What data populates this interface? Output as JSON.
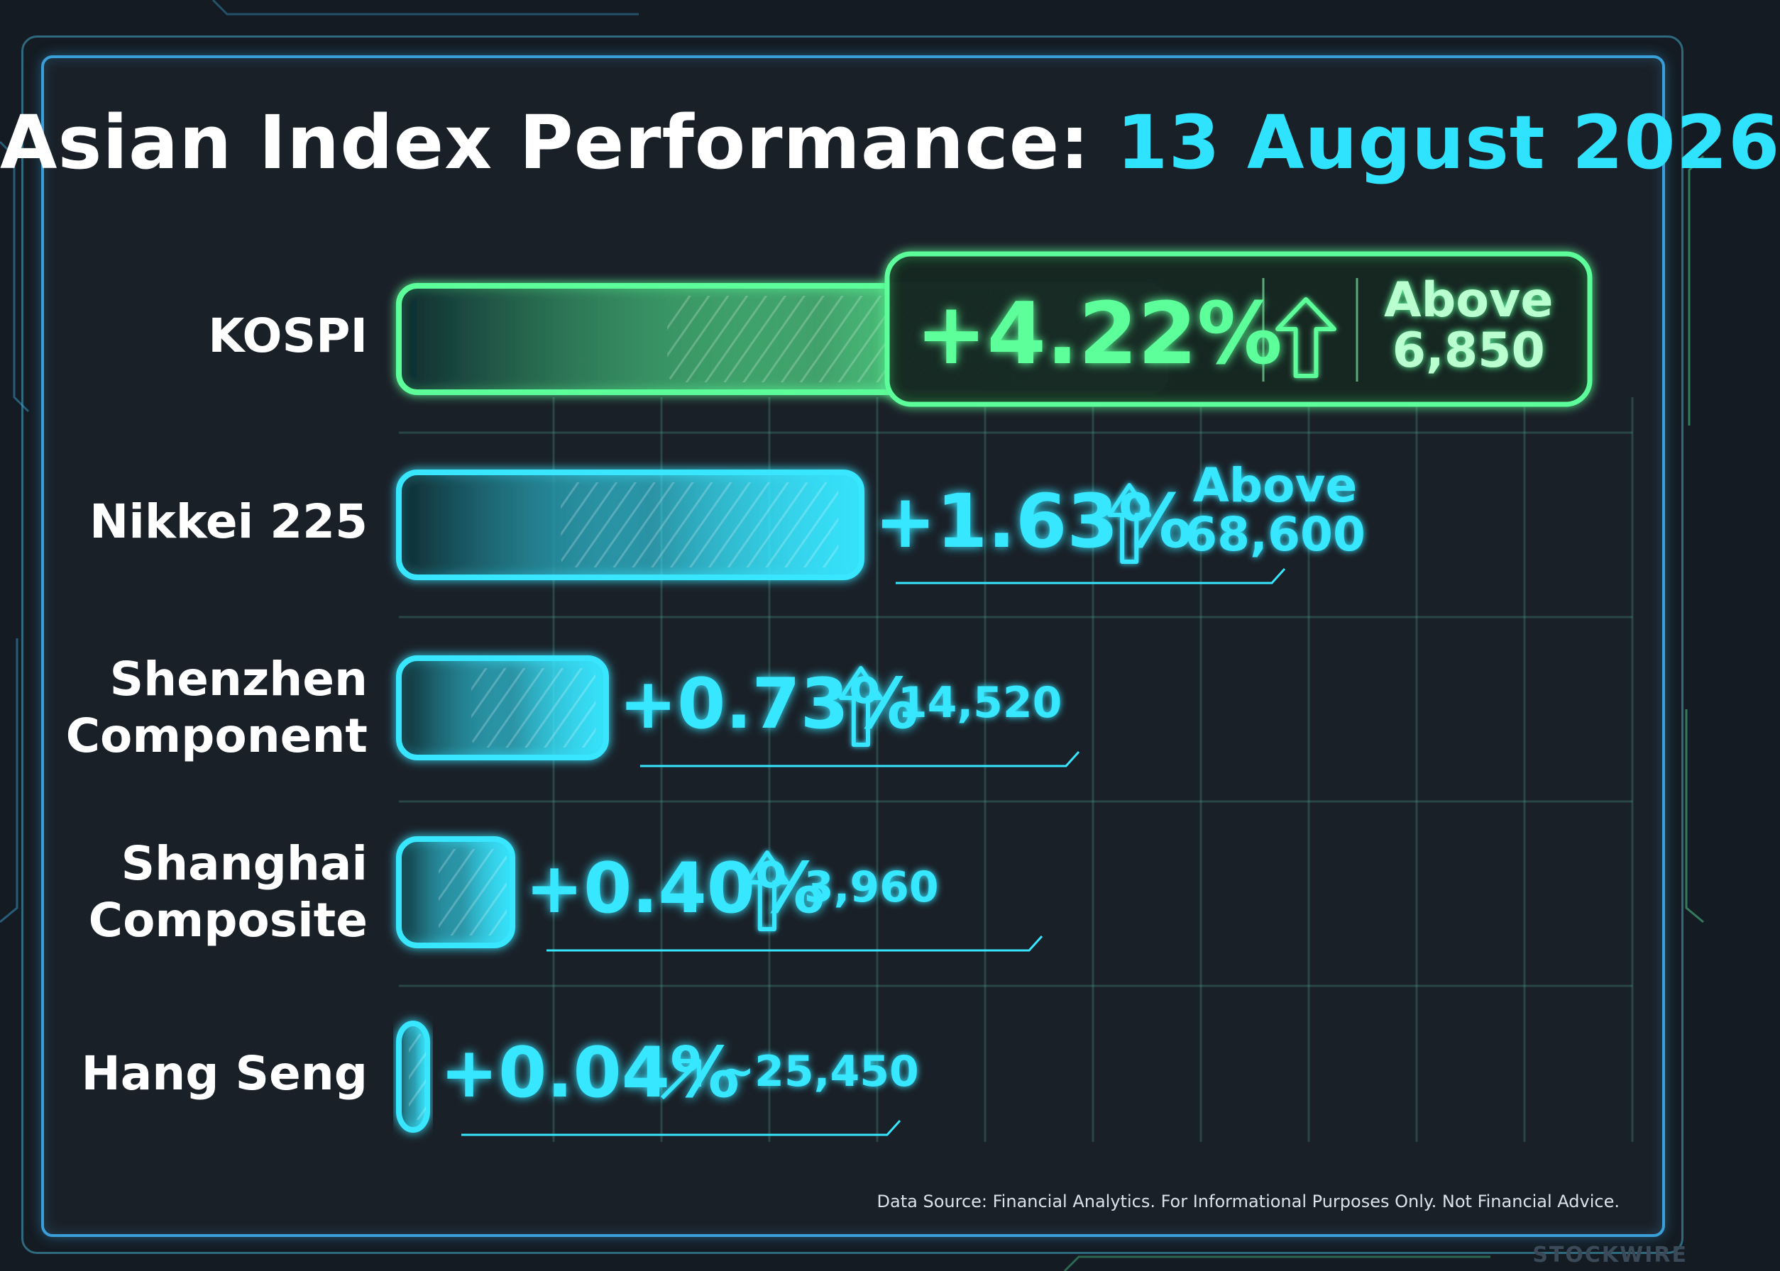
{
  "title": {
    "main": "Asian Index Performance:",
    "date": "13 August 2026"
  },
  "chart_data": {
    "type": "bar",
    "orientation": "horizontal",
    "unit": "%",
    "categories": [
      "KOSPI",
      "Nikkei 225",
      "Shenzhen Component",
      "Shanghai Composite",
      "Hang Seng"
    ],
    "series": [
      {
        "values": [
          4.22,
          1.63,
          0.73,
          0.4,
          0.04
        ],
        "value_labels": [
          "+4.22%",
          "+1.63%",
          "+0.73%",
          "+0.40%",
          "+0.04%"
        ],
        "level_notes": [
          "Above 6,850",
          "Above 68,600",
          "14,520",
          "3,960",
          "~25,450"
        ]
      }
    ],
    "xlim": [
      0,
      4.22
    ],
    "grid": true,
    "colors": {
      "highlight": "#5dff9a",
      "bar": "#37e6ff"
    }
  },
  "footer": {
    "source": "Data Source: Financial Analytics. For Informational Purposes Only. Not Financial Advice.",
    "brand": "STOCKWIRE"
  }
}
